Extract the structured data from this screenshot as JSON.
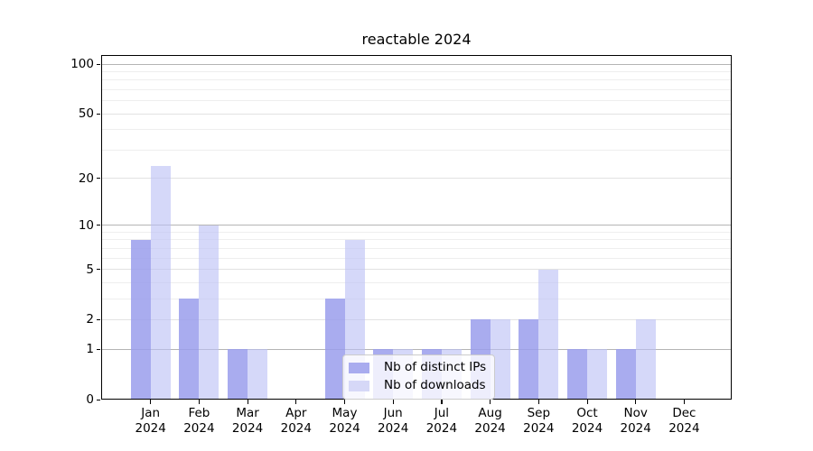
{
  "chart_data": {
    "type": "bar",
    "title": "reactable 2024",
    "months": [
      "Jan",
      "Feb",
      "Mar",
      "Apr",
      "May",
      "Jun",
      "Jul",
      "Aug",
      "Sep",
      "Oct",
      "Nov",
      "Dec"
    ],
    "year": "2024",
    "series": [
      {
        "name": "Nb of distinct IPs",
        "color": "#a9acef",
        "bar_fill": "rgba(154,157,236,0.85)",
        "values": [
          8,
          3,
          1,
          0,
          3,
          1,
          1,
          2,
          2,
          1,
          1,
          0
        ]
      },
      {
        "name": "Nb of downloads",
        "color": "#d6d8f7",
        "bar_fill": "rgba(188,192,245,0.62)",
        "values": [
          24,
          10,
          1,
          0,
          8,
          1,
          1,
          2,
          5,
          1,
          2,
          0
        ]
      }
    ],
    "y_axis": {
      "ticks": [
        0,
        1,
        2,
        5,
        10,
        20,
        50,
        100
      ],
      "decade_gridlines": [
        1,
        10,
        100
      ],
      "minor_gridlines": [
        3,
        4,
        6,
        7,
        8,
        9,
        30,
        40,
        60,
        70,
        80,
        90
      ],
      "scale": "log1p",
      "ylim": [
        0,
        113.4
      ]
    },
    "grid": {
      "decade_color": "#b4b4b4",
      "major_color": "#e2e2e2",
      "minor_color": "#eeeeee"
    },
    "legend": {
      "position": "lower-center"
    }
  }
}
